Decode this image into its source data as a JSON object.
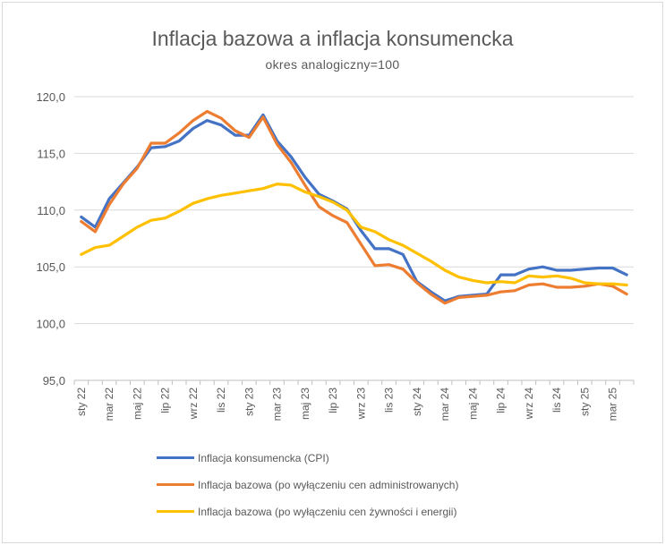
{
  "chart_data": {
    "type": "line",
    "title": "Inflacja bazowa a inflacja konsumencka",
    "subtitle": "okres analogiczny=100",
    "ylim": [
      95,
      120
    ],
    "yticks": [
      "120,0",
      "115,0",
      "110,0",
      "105,0",
      "100,0",
      "95,0"
    ],
    "ytick_values": [
      120,
      115,
      110,
      105,
      100,
      95
    ],
    "grid": true,
    "legend_position": "bottom",
    "categories": [
      "sty 22",
      "lut 22",
      "mar 22",
      "kwi 22",
      "maj 22",
      "cze 22",
      "lip 22",
      "sie 22",
      "wrz 22",
      "paź 22",
      "lis 22",
      "gru 22",
      "sty 23",
      "lut 23",
      "mar 23",
      "kwi 23",
      "maj 23",
      "cze 23",
      "lip 23",
      "sie 23",
      "wrz 23",
      "paź 23",
      "lis 23",
      "gru 23",
      "sty 24",
      "lut 24",
      "mar 24",
      "kwi 24",
      "maj 24",
      "cze 24",
      "lip 24",
      "sie 24",
      "wrz 24",
      "paź 24",
      "lis 24",
      "gru 24",
      "sty 25",
      "lut 25",
      "mar 25",
      "kwi 25"
    ],
    "xtick_labels": [
      "sty 22",
      "mar 22",
      "maj 22",
      "lip 22",
      "wrz 22",
      "lis 22",
      "sty 23",
      "mar 23",
      "maj 23",
      "lip 23",
      "wrz 23",
      "lis 23",
      "sty 24",
      "mar 24",
      "maj 24",
      "lip 24",
      "wrz 24",
      "lis 24",
      "sty 25",
      "mar 25"
    ],
    "series": [
      {
        "name": "Inflacja konsumencka (CPI)",
        "color": "#4472c4",
        "values": [
          109.4,
          108.5,
          111.0,
          112.4,
          113.8,
          115.5,
          115.6,
          116.1,
          117.2,
          117.9,
          117.5,
          116.6,
          116.6,
          118.4,
          116.1,
          114.7,
          112.9,
          111.4,
          110.8,
          110.1,
          108.2,
          106.6,
          106.6,
          106.1,
          103.7,
          102.8,
          102.0,
          102.4,
          102.5,
          102.6,
          104.3,
          104.3,
          104.8,
          105.0,
          104.7,
          104.7,
          104.8,
          104.9,
          104.9,
          104.3
        ]
      },
      {
        "name": "Inflacja bazowa (po wyłączeniu cen administrowanych)",
        "color": "#ed7d31",
        "values": [
          109.0,
          108.1,
          110.5,
          112.3,
          113.7,
          115.9,
          115.9,
          116.8,
          117.9,
          118.7,
          118.1,
          117.0,
          116.4,
          118.2,
          115.8,
          114.2,
          112.2,
          110.3,
          109.5,
          108.9,
          107.0,
          105.1,
          105.2,
          104.8,
          103.6,
          102.6,
          101.8,
          102.3,
          102.4,
          102.5,
          102.8,
          102.9,
          103.4,
          103.5,
          103.2,
          103.2,
          103.3,
          103.5,
          103.3,
          102.6
        ]
      },
      {
        "name": "Inflacja bazowa (po wyłączeniu cen żywności i energii)",
        "color": "#ffc000",
        "values": [
          106.1,
          106.7,
          106.9,
          107.7,
          108.5,
          109.1,
          109.3,
          109.9,
          110.6,
          111.0,
          111.3,
          111.5,
          111.7,
          111.9,
          112.3,
          112.2,
          111.6,
          111.2,
          110.7,
          110.0,
          108.5,
          108.1,
          107.4,
          106.9,
          106.2,
          105.5,
          104.7,
          104.1,
          103.8,
          103.6,
          103.7,
          103.6,
          104.2,
          104.1,
          104.2,
          104.0,
          103.6,
          103.5,
          103.5,
          103.4
        ]
      }
    ]
  }
}
